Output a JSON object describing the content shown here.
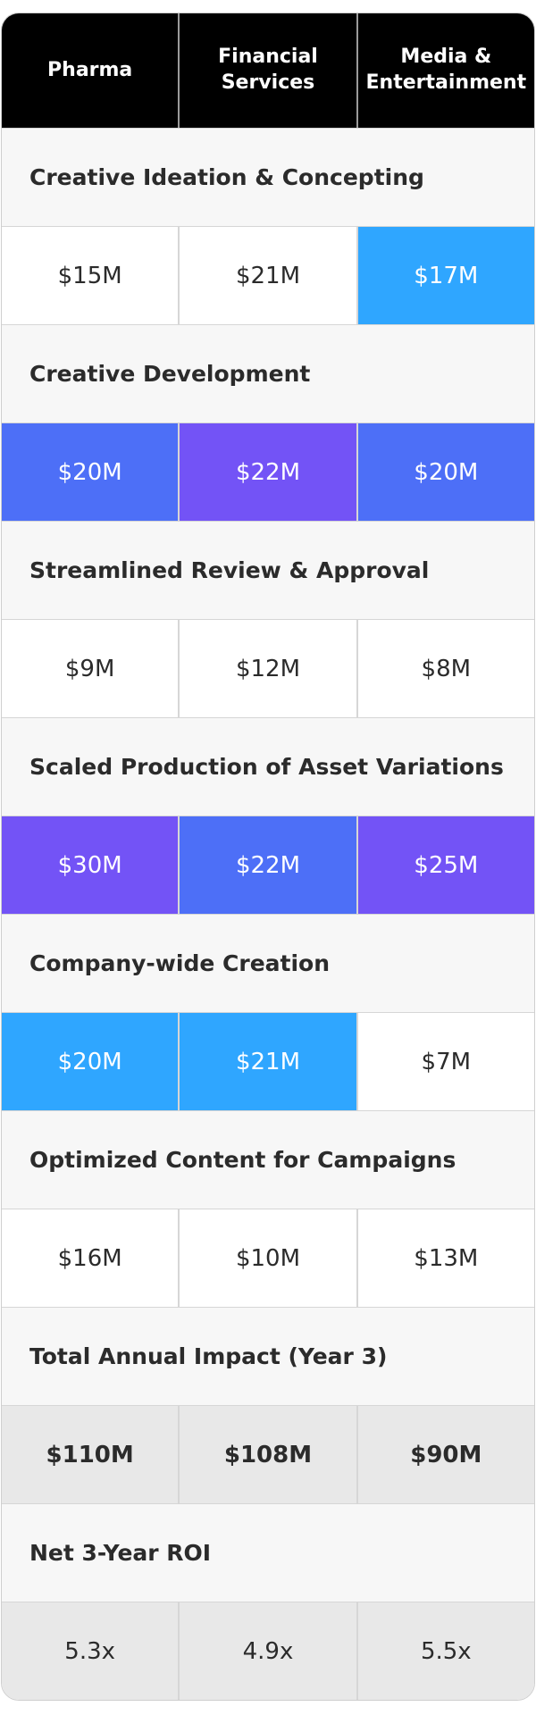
{
  "table": {
    "columns": [
      "Pharma",
      "Financial Services",
      "Media & Entertainment"
    ],
    "rows": [
      {
        "label": "Creative Ideation & Concepting",
        "values": [
          "$15M",
          "$21M",
          "$17M"
        ],
        "colors": [
          "#ffffff",
          "#ffffff",
          "#2fa6ff"
        ]
      },
      {
        "label": "Creative Development",
        "values": [
          "$20M",
          "$22M",
          "$20M"
        ],
        "colors": [
          "#4d6ff7",
          "#7353f6",
          "#4d6ff7"
        ]
      },
      {
        "label": "Streamlined Review & Approval",
        "values": [
          "$9M",
          "$12M",
          "$8M"
        ],
        "colors": [
          "#ffffff",
          "#ffffff",
          "#ffffff"
        ]
      },
      {
        "label": "Scaled Production of Asset Variations",
        "values": [
          "$30M",
          "$22M",
          "$25M"
        ],
        "colors": [
          "#7353f6",
          "#4d6ff7",
          "#7353f6"
        ]
      },
      {
        "label": "Company-wide Creation",
        "values": [
          "$20M",
          "$21M",
          "$7M"
        ],
        "colors": [
          "#2fa6ff",
          "#2fa6ff",
          "#ffffff"
        ]
      },
      {
        "label": "Optimized Content for Campaigns",
        "values": [
          "$16M",
          "$10M",
          "$13M"
        ],
        "colors": [
          "#ffffff",
          "#ffffff",
          "#ffffff"
        ]
      },
      {
        "label": "Total Annual Impact (Year 3)",
        "values": [
          "$110M",
          "$108M",
          "$90M"
        ],
        "colors": [
          "#e8e8e8",
          "#e8e8e8",
          "#e8e8e8"
        ]
      },
      {
        "label": "Net 3-Year ROI",
        "values": [
          "5.3x",
          "4.9x",
          "5.5x"
        ],
        "colors": [
          "#e8e8e8",
          "#e8e8e8",
          "#e8e8e8"
        ]
      }
    ]
  }
}
